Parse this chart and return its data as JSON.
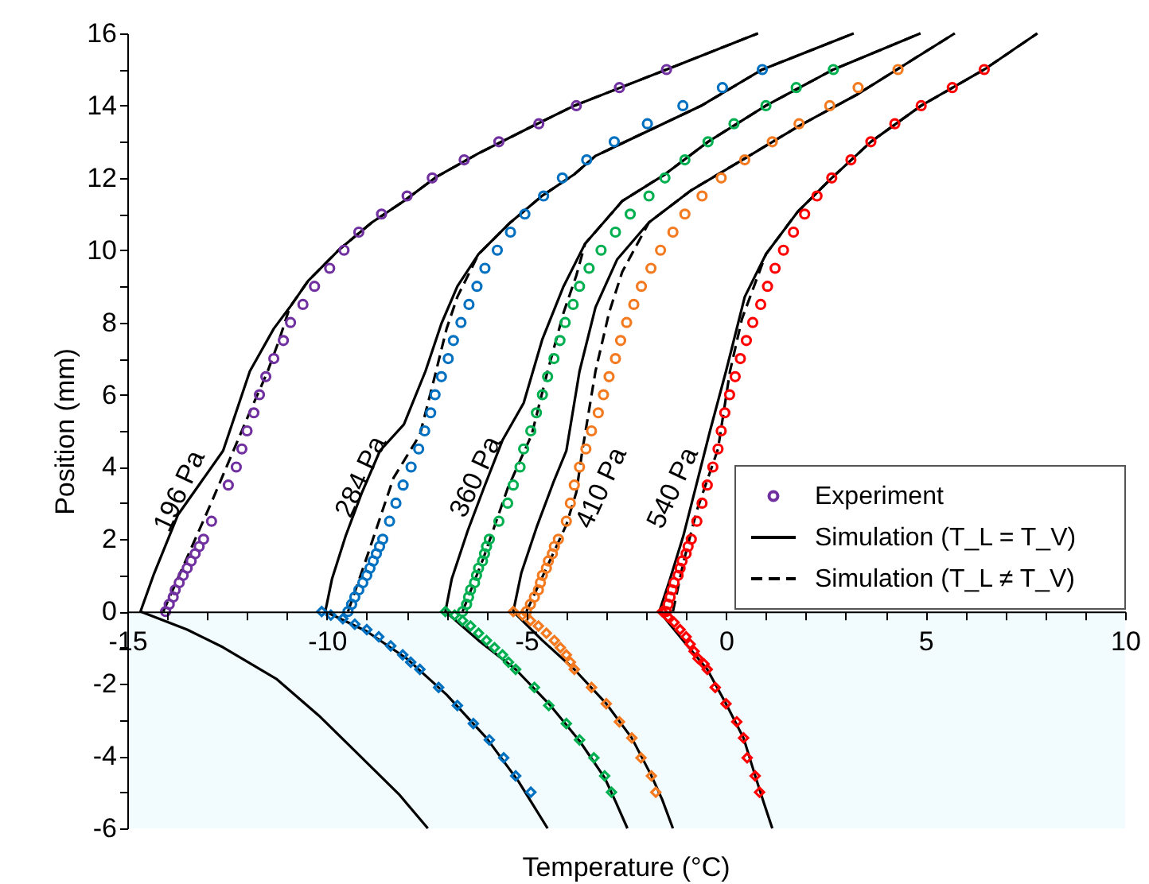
{
  "chart_data": {
    "type": "scatter",
    "xlabel": "Temperature (°C)",
    "ylabel": "Position (mm)",
    "xlim": [
      -15,
      10
    ],
    "ylim": [
      -6,
      16
    ],
    "xticks": [
      -15,
      {
        "value": -14,
        "label": null
      },
      {
        "value": -13,
        "label": null
      },
      {
        "value": -12,
        "label": null
      },
      {
        "value": -11,
        "label": null
      },
      -10,
      {
        "value": -9,
        "label": null
      },
      {
        "value": -8,
        "label": null
      },
      {
        "value": -7,
        "label": null
      },
      {
        "value": -6,
        "label": null
      },
      -5,
      {
        "value": -4,
        "label": null
      },
      {
        "value": -3,
        "label": null
      },
      {
        "value": -2,
        "label": null
      },
      {
        "value": -1,
        "label": null
      },
      0,
      {
        "value": 1,
        "label": null
      },
      {
        "value": 2,
        "label": null
      },
      {
        "value": 3,
        "label": null
      },
      {
        "value": 4,
        "label": null
      },
      5,
      {
        "value": 6,
        "label": null
      },
      {
        "value": 7,
        "label": null
      },
      {
        "value": 8,
        "label": null
      },
      {
        "value": 9,
        "label": null
      },
      10
    ],
    "yticks": [
      -6,
      {
        "value": -5,
        "label": null
      },
      -4,
      {
        "value": -3,
        "label": null
      },
      -2,
      {
        "value": -1,
        "label": null
      },
      0,
      {
        "value": 1,
        "label": null
      },
      2,
      {
        "value": 3,
        "label": null
      },
      4,
      {
        "value": 5,
        "label": null
      },
      6,
      {
        "value": 7,
        "label": null
      },
      8,
      {
        "value": 9,
        "label": null
      },
      10,
      {
        "value": 11,
        "label": null
      },
      12,
      {
        "value": 13,
        "label": null
      },
      14,
      {
        "value": 15,
        "label": null
      },
      16
    ],
    "legend": "right",
    "bands": [
      {
        "axis": "y",
        "from": -6,
        "to": 0,
        "color": "#f2fbfe"
      }
    ],
    "annotations": [
      "196 Pa",
      "284 Pa",
      "360 Pa",
      "410 Pa",
      "540 Pa"
    ],
    "series": [
      {
        "name": "Experiment",
        "marker": "circle",
        "color": "#7030a0",
        "x": [
          -14.04,
          -13.95,
          -13.85,
          -13.8,
          -13.7,
          -13.6,
          -13.5,
          -13.4,
          -13.3,
          -13.2,
          -13.09,
          -12.89,
          -12.47,
          -12.27,
          -12.13,
          -12.0,
          -11.83,
          -11.69,
          -11.53,
          -11.33,
          -11.09,
          -10.91,
          -10.6,
          -10.31,
          -9.93,
          -9.57,
          -9.2,
          -8.63,
          -7.99,
          -7.36,
          -6.56,
          -5.69,
          -4.69,
          -3.75,
          -2.67,
          -1.49
        ],
        "values": [
          0,
          0.2,
          0.4,
          0.6,
          0.8,
          1.0,
          1.2,
          1.4,
          1.6,
          1.8,
          2.0,
          2.5,
          3.5,
          4.0,
          4.5,
          5.0,
          5.5,
          6.0,
          6.5,
          7.0,
          7.5,
          8.0,
          8.5,
          9.0,
          9.5,
          10.0,
          10.5,
          11.0,
          11.5,
          12.0,
          12.5,
          13.0,
          13.5,
          14.0,
          14.5,
          15.0
        ]
      },
      {
        "marker": "circle",
        "color": "#0070c0",
        "x": [
          -9.47,
          -9.38,
          -9.3,
          -9.2,
          -9.1,
          -9.0,
          -8.92,
          -8.84,
          -8.76,
          -8.68,
          -8.6,
          -8.43,
          -8.27,
          -8.09,
          -7.89,
          -7.7,
          -7.55,
          -7.4,
          -7.29,
          -7.13,
          -6.96,
          -6.83,
          -6.64,
          -6.44,
          -6.24,
          -6.04,
          -5.73,
          -5.4,
          -5.04,
          -4.57,
          -4.1,
          -3.49,
          -2.8,
          -1.97,
          -1.08,
          -0.09,
          0.91
        ],
        "values": [
          0,
          0.2,
          0.4,
          0.6,
          0.8,
          1.0,
          1.2,
          1.4,
          1.6,
          1.8,
          2.0,
          2.5,
          3.0,
          3.5,
          4.0,
          4.5,
          5.0,
          5.5,
          6.0,
          6.5,
          7.0,
          7.5,
          8.0,
          8.5,
          9.0,
          9.5,
          10.0,
          10.5,
          11.0,
          11.5,
          12.0,
          12.5,
          13.0,
          13.5,
          14.0,
          14.5,
          15.0
        ]
      },
      {
        "marker": "diamond",
        "color": "#0070c0",
        "x": [
          -10.13,
          -9.9,
          -9.6,
          -9.3,
          -9.0,
          -8.7,
          -8.4,
          -8.1,
          -7.9,
          -7.67,
          -7.2,
          -6.73,
          -6.33,
          -5.93,
          -5.57,
          -5.27,
          -4.89
        ],
        "values": [
          0,
          -0.1,
          -0.2,
          -0.35,
          -0.5,
          -0.7,
          -0.95,
          -1.2,
          -1.4,
          -1.6,
          -2.1,
          -2.6,
          -3.1,
          -3.55,
          -4.05,
          -4.55,
          -5.0
        ]
      },
      {
        "marker": "circle",
        "color": "#00b050",
        "x": [
          -6.6,
          -6.5,
          -6.45,
          -6.4,
          -6.3,
          -6.25,
          -6.2,
          -6.1,
          -6.05,
          -6.0,
          -5.93,
          -5.69,
          -5.47,
          -5.33,
          -5.16,
          -5.07,
          -4.89,
          -4.75,
          -4.6,
          -4.47,
          -4.31,
          -4.16,
          -4.03,
          -3.83,
          -3.67,
          -3.43,
          -3.13,
          -2.77,
          -2.4,
          -1.93,
          -1.53,
          -1.03,
          -0.45,
          0.2,
          1.0,
          1.76,
          2.69
        ],
        "values": [
          0,
          0.2,
          0.4,
          0.6,
          0.8,
          1.0,
          1.2,
          1.4,
          1.6,
          1.8,
          2.0,
          2.5,
          3.0,
          3.5,
          4.0,
          4.5,
          5.0,
          5.5,
          6.0,
          6.5,
          7.0,
          7.5,
          8.0,
          8.5,
          9.0,
          9.5,
          10.0,
          10.5,
          11.0,
          11.5,
          12.0,
          12.5,
          13.0,
          13.5,
          14.0,
          14.5,
          15.0
        ]
      },
      {
        "marker": "diamond",
        "color": "#00b050",
        "x": [
          -7.03,
          -6.8,
          -6.6,
          -6.4,
          -6.2,
          -6.0,
          -5.8,
          -5.6,
          -5.45,
          -5.27,
          -4.8,
          -4.44,
          -4.0,
          -3.67,
          -3.31,
          -3.04,
          -2.87
        ],
        "values": [
          0,
          -0.1,
          -0.25,
          -0.4,
          -0.6,
          -0.8,
          -1.0,
          -1.2,
          -1.4,
          -1.6,
          -2.1,
          -2.6,
          -3.1,
          -3.55,
          -4.05,
          -4.55,
          -5.0
        ]
      },
      {
        "marker": "circle",
        "color": "#f47a20",
        "x": [
          -5.0,
          -4.9,
          -4.8,
          -4.7,
          -4.65,
          -4.6,
          -4.5,
          -4.45,
          -4.35,
          -4.3,
          -4.2,
          -4.0,
          -3.9,
          -3.8,
          -3.67,
          -3.51,
          -3.37,
          -3.2,
          -3.07,
          -2.93,
          -2.77,
          -2.64,
          -2.49,
          -2.31,
          -2.12,
          -1.88,
          -1.64,
          -1.33,
          -1.03,
          -0.6,
          -0.12,
          0.47,
          1.16,
          1.83,
          2.6,
          3.31,
          4.31
        ],
        "values": [
          0,
          0.2,
          0.4,
          0.6,
          0.8,
          1.0,
          1.2,
          1.4,
          1.6,
          1.8,
          2.0,
          2.5,
          3.0,
          3.5,
          4.0,
          4.5,
          5.0,
          5.5,
          6.0,
          6.5,
          7.0,
          7.5,
          8.0,
          8.5,
          9.0,
          9.5,
          10.0,
          10.5,
          11.0,
          11.5,
          12.0,
          12.5,
          13.0,
          13.5,
          14.0,
          14.5,
          15.0
        ]
      },
      {
        "marker": "diamond",
        "color": "#f47a20",
        "x": [
          -5.33,
          -5.1,
          -4.9,
          -4.7,
          -4.5,
          -4.3,
          -4.15,
          -4.0,
          -3.9,
          -3.8,
          -3.37,
          -3.0,
          -2.67,
          -2.36,
          -2.13,
          -1.87,
          -1.76
        ],
        "values": [
          0,
          -0.1,
          -0.25,
          -0.4,
          -0.6,
          -0.8,
          -1.0,
          -1.2,
          -1.4,
          -1.6,
          -2.1,
          -2.55,
          -3.05,
          -3.5,
          -4.05,
          -4.55,
          -5.0
        ]
      },
      {
        "marker": "circle",
        "color": "#ff0000",
        "x": [
          -1.5,
          -1.45,
          -1.4,
          -1.35,
          -1.3,
          -1.2,
          -1.15,
          -1.1,
          -1.0,
          -0.95,
          -0.87,
          -0.73,
          -0.6,
          -0.47,
          -0.33,
          -0.2,
          -0.12,
          -0.03,
          0.09,
          0.23,
          0.36,
          0.51,
          0.67,
          0.87,
          1.04,
          1.23,
          1.44,
          1.69,
          1.97,
          2.28,
          2.65,
          3.13,
          3.63,
          4.23,
          4.89,
          5.67,
          6.47
        ],
        "values": [
          0,
          0.2,
          0.4,
          0.6,
          0.8,
          1.0,
          1.2,
          1.4,
          1.6,
          1.8,
          2.0,
          2.5,
          3.0,
          3.5,
          4.0,
          4.5,
          5.0,
          5.5,
          6.0,
          6.5,
          7.0,
          7.5,
          8.0,
          8.5,
          9.0,
          9.5,
          10.0,
          10.5,
          11.0,
          11.5,
          12.0,
          12.5,
          13.0,
          13.5,
          14.0,
          14.5,
          15.0
        ]
      },
      {
        "marker": "diamond",
        "color": "#ff0000",
        "x": [
          -1.6,
          -1.45,
          -1.3,
          -1.15,
          -1.0,
          -0.9,
          -0.8,
          -0.7,
          -0.55,
          -0.47,
          -0.27,
          0.0,
          0.27,
          0.44,
          0.53,
          0.73,
          0.84
        ],
        "values": [
          0,
          -0.15,
          -0.3,
          -0.5,
          -0.7,
          -0.9,
          -1.1,
          -1.3,
          -1.45,
          -1.6,
          -2.1,
          -2.55,
          -3.05,
          -3.5,
          -4.05,
          -4.55,
          -5.0
        ]
      },
      {
        "name": "Simulation (T_L = T_V)",
        "type": "line",
        "line_style": "solid",
        "color": "#000000",
        "x": [
          -7.47,
          -8.2,
          -9.13,
          -10.2,
          -11.27,
          -12.6,
          -13.5,
          -14.67,
          -14.33,
          -13.73,
          -12.6,
          -11.93,
          -11.33,
          -10.93,
          -10.47,
          -9.67,
          -8.87,
          -8.07,
          -7.27,
          -6.2,
          -4.87,
          -3.8,
          -1.49,
          0.8
        ],
        "values": [
          -6.0,
          -5.05,
          -4.04,
          -2.88,
          -1.86,
          -0.99,
          -0.5,
          0,
          1.05,
          2.68,
          4.45,
          6.65,
          7.83,
          8.42,
          9.15,
          10.04,
          10.77,
          11.36,
          12.02,
          12.68,
          13.42,
          14.0,
          15.0,
          16.0
        ]
      },
      {
        "type": "line",
        "line_style": "solid",
        "color": "#000000",
        "x": [
          -4.47,
          -5.2,
          -6.0,
          -7.0,
          -8.0,
          -9.0,
          -10.04,
          -9.87,
          -9.53,
          -9.13,
          -8.67,
          -8.07,
          -7.53,
          -7.13,
          -6.73,
          -6.2,
          -5.4,
          -4.6,
          -3.8,
          -3.27,
          -0.6,
          0.91,
          3.2
        ],
        "values": [
          -6.0,
          -4.7,
          -3.5,
          -2.3,
          -1.3,
          -0.55,
          0,
          0.91,
          2.09,
          3.27,
          4.45,
          5.18,
          6.65,
          7.97,
          9.0,
          9.89,
          10.77,
          11.51,
          12.1,
          12.61,
          14.01,
          15.0,
          16.0
        ]
      },
      {
        "type": "line",
        "line_style": "solid",
        "color": "#000000",
        "x": [
          -2.47,
          -2.75,
          -3.04,
          -3.67,
          -4.4,
          -5.27,
          -6.2,
          -7.03,
          -6.87,
          -6.47,
          -6.07,
          -5.6,
          -5.07,
          -4.6,
          -4.07,
          -3.53,
          -2.6,
          -1.53,
          -0.45,
          1.0,
          2.69,
          4.87
        ],
        "values": [
          -6.0,
          -5.3,
          -4.6,
          -3.58,
          -2.6,
          -1.6,
          -0.8,
          0,
          0.91,
          2.24,
          3.41,
          4.74,
          5.77,
          7.54,
          9.0,
          10.18,
          11.36,
          12.1,
          13.0,
          14.0,
          15.0,
          16.0
        ]
      },
      {
        "type": "line",
        "line_style": "solid",
        "color": "#000000",
        "x": [
          -1.33,
          -1.6,
          -1.87,
          -2.36,
          -3.0,
          -3.8,
          -4.6,
          -5.33,
          -5.13,
          -4.73,
          -4.33,
          -4.0,
          -3.67,
          -3.27,
          -2.73,
          -1.93,
          -0.87,
          0.47,
          1.8,
          3.27,
          5.73
        ],
        "values": [
          -6.0,
          -5.2,
          -4.54,
          -3.5,
          -2.55,
          -1.6,
          -0.8,
          0,
          1.06,
          2.38,
          3.56,
          4.45,
          6.65,
          8.42,
          9.74,
          10.77,
          11.66,
          12.54,
          13.42,
          14.3,
          16.0
        ]
      },
      {
        "type": "line",
        "line_style": "solid",
        "color": "#000000",
        "x": [
          1.16,
          0.95,
          0.73,
          0.44,
          0.0,
          -0.47,
          -1.0,
          -1.67,
          -1.4,
          -1.07,
          -0.73,
          -0.4,
          0.0,
          0.47,
          1.0,
          1.8,
          2.65,
          3.63,
          4.89,
          6.47,
          7.8
        ],
        "values": [
          -6.0,
          -5.3,
          -4.54,
          -3.5,
          -2.55,
          -1.6,
          -0.9,
          0,
          0.91,
          2.09,
          3.56,
          5.0,
          6.65,
          8.71,
          9.89,
          11.07,
          12.0,
          13.0,
          14.0,
          15.0,
          16.0
        ]
      },
      {
        "name": "Simulation (T_L ≠ T_V)",
        "type": "line",
        "line_style": "dashed",
        "color": "#000000",
        "x": [
          -14.1,
          -13.5,
          -12.9,
          -12.4,
          -11.9,
          -11.5,
          -11.2,
          -10.93,
          -10.47,
          -9.67,
          -8.87,
          -8.07,
          -7.27,
          -6.2,
          -4.87,
          -3.8,
          -1.49,
          0.8
        ],
        "values": [
          0,
          1.5,
          3.0,
          4.3,
          5.6,
          6.6,
          7.5,
          8.42,
          9.15,
          10.04,
          10.77,
          11.36,
          12.02,
          12.68,
          13.42,
          14.0,
          15.0,
          16.0
        ]
      },
      {
        "type": "line",
        "line_style": "dashed",
        "color": "#000000",
        "x": [
          -9.47,
          -9.0,
          -8.33,
          -7.67,
          -7.33,
          -7.0,
          -6.73,
          -6.2,
          -5.4,
          -4.6,
          -3.8,
          -3.27,
          -0.6,
          0.91,
          3.2
        ],
        "values": [
          0,
          1.5,
          3.7,
          4.89,
          6.36,
          7.83,
          8.71,
          9.89,
          10.77,
          11.51,
          12.1,
          12.61,
          14.01,
          15.0,
          16.0
        ]
      },
      {
        "type": "line",
        "line_style": "dashed",
        "color": "#000000",
        "x": [
          -6.6,
          -6.07,
          -5.47,
          -4.87,
          -4.47,
          -4.07,
          -3.75,
          -3.53,
          -2.6,
          -1.53,
          -0.45,
          1.0,
          2.69,
          4.87
        ],
        "values": [
          0,
          1.5,
          3.41,
          4.89,
          6.65,
          8.27,
          9.3,
          10.18,
          11.36,
          12.1,
          13.0,
          14.0,
          15.0,
          16.0
        ]
      },
      {
        "type": "line",
        "line_style": "dashed",
        "color": "#000000",
        "x": [
          -5.0,
          -4.5,
          -4.0,
          -3.75,
          -3.6,
          -3.27,
          -2.93,
          -2.6,
          -1.93,
          -0.87,
          0.47,
          1.8,
          3.27,
          5.73
        ],
        "values": [
          0,
          1.2,
          2.4,
          3.3,
          4.45,
          6.65,
          8.27,
          9.4,
          10.77,
          11.66,
          12.54,
          13.42,
          14.3,
          16.0
        ]
      },
      {
        "type": "line",
        "line_style": "dashed",
        "color": "#000000",
        "x": [
          -1.33,
          -1.07,
          -0.73,
          -0.2,
          0.1,
          0.4,
          1.0,
          1.8,
          2.65,
          3.63,
          4.89,
          6.47,
          7.8
        ],
        "values": [
          0,
          1.35,
          2.8,
          4.5,
          6.65,
          8.1,
          9.89,
          11.07,
          12.0,
          13.0,
          14.0,
          15.0,
          16.0
        ]
      }
    ]
  }
}
